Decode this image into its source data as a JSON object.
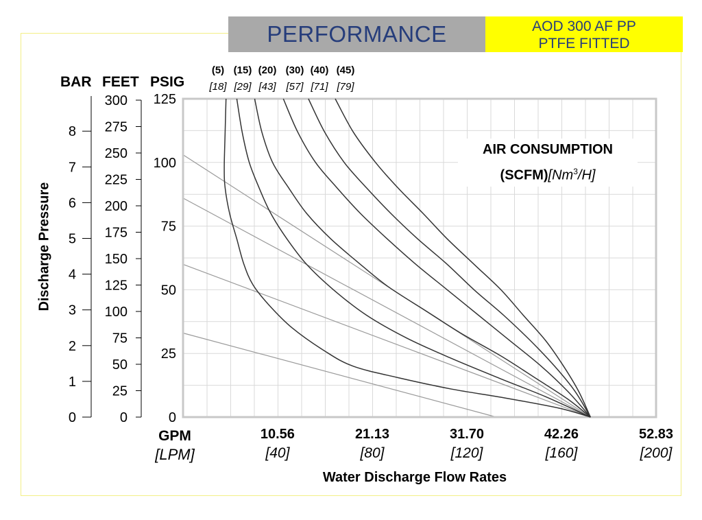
{
  "header": {
    "title": "PERFORMANCE",
    "model_line1": "AOD 300 AF PP",
    "model_line2": "PTFE FITTED"
  },
  "colors": {
    "title_bg": "#a9a9a9",
    "title_text": "#263d7b",
    "model_bg": "#ffff00",
    "frame_border": "#f3ef86",
    "plot_border": "#c8c8c8",
    "grid": "#d9d9d9",
    "curve": "#333333",
    "air_line": "#9a9a9a"
  },
  "axes": {
    "bar_label": "BAR",
    "feet_label": "FEET",
    "psig_label": "PSIG",
    "y_title": "Discharge Pressure",
    "x_title": "Water Discharge Flow Rates",
    "x_unit_primary": "GPM",
    "x_unit_secondary": "[LPM]"
  },
  "air_label": {
    "line1": "AIR CONSUMPTION",
    "line2_bold": "(SCFM)",
    "line2_italic_a": "[Nm",
    "line2_sup": "3",
    "line2_italic_b": "/H]"
  },
  "chart_data": {
    "type": "line",
    "title": "PERFORMANCE",
    "xlabel": "Water Discharge Flow Rates",
    "ylabel": "Discharge Pressure",
    "x_unit": "GPM",
    "y_unit": "PSIG",
    "xlim": [
      0,
      52.83
    ],
    "ylim": [
      0,
      125
    ],
    "grid": true,
    "x_ticks": [
      {
        "value": 10.56,
        "gpm": "10.56",
        "lpm": "[40]"
      },
      {
        "value": 21.13,
        "gpm": "21.13",
        "lpm": "[80]"
      },
      {
        "value": 31.7,
        "gpm": "31.70",
        "lpm": "[120]"
      },
      {
        "value": 42.26,
        "gpm": "42.26",
        "lpm": "[160]"
      },
      {
        "value": 52.83,
        "gpm": "52.83",
        "lpm": "[200]"
      }
    ],
    "psig_ticks": [
      "0",
      "25",
      "50",
      "75",
      "100",
      "125"
    ],
    "feet_ticks": [
      "0",
      "25",
      "50",
      "75",
      "100",
      "125",
      "150",
      "175",
      "200",
      "225",
      "250",
      "275",
      "300"
    ],
    "bar_ticks": [
      "0",
      "1",
      "2",
      "3",
      "4",
      "5",
      "6",
      "7",
      "8"
    ],
    "air_consumption_series": [
      {
        "scfm": "(5)",
        "nm3h": "[18]",
        "points": [
          [
            4.8,
            125
          ],
          [
            4.7,
            112
          ],
          [
            4.6,
            98
          ],
          [
            4.7,
            90
          ],
          [
            5.2,
            80
          ],
          [
            6.0,
            70
          ],
          [
            6.8,
            60
          ],
          [
            7.8,
            52
          ],
          [
            9.6,
            44
          ],
          [
            12.2,
            35
          ],
          [
            15.8,
            26
          ],
          [
            19.0,
            20
          ],
          [
            24.0,
            15.5
          ],
          [
            30.0,
            11
          ],
          [
            36.0,
            7.5
          ],
          [
            42.0,
            3.5
          ],
          [
            45.5,
            0
          ]
        ]
      },
      {
        "scfm": "(15)",
        "nm3h": "[29]",
        "points": [
          [
            6.0,
            125
          ],
          [
            6.6,
            112
          ],
          [
            7.4,
            100
          ],
          [
            8.5,
            90
          ],
          [
            9.8,
            80
          ],
          [
            11.6,
            70
          ],
          [
            13.8,
            60
          ],
          [
            16.8,
            50
          ],
          [
            20.5,
            40
          ],
          [
            25.0,
            31
          ],
          [
            30.0,
            23
          ],
          [
            35.5,
            15
          ],
          [
            40.5,
            8
          ],
          [
            45.5,
            0
          ]
        ]
      },
      {
        "scfm": "(20)",
        "nm3h": "[43]",
        "points": [
          [
            8.0,
            125
          ],
          [
            8.8,
            112
          ],
          [
            10.0,
            100
          ],
          [
            11.8,
            90
          ],
          [
            13.8,
            80
          ],
          [
            16.5,
            70
          ],
          [
            19.8,
            60
          ],
          [
            23.0,
            51
          ],
          [
            27.0,
            42
          ],
          [
            31.0,
            33
          ],
          [
            35.5,
            24
          ],
          [
            39.5,
            15
          ],
          [
            43.0,
            7
          ],
          [
            45.5,
            0
          ]
        ]
      },
      {
        "scfm": "(30)",
        "nm3h": "[57]",
        "points": [
          [
            11.2,
            125
          ],
          [
            12.8,
            112
          ],
          [
            14.8,
            100
          ],
          [
            17.2,
            90
          ],
          [
            19.8,
            80
          ],
          [
            22.8,
            70
          ],
          [
            26.0,
            60
          ],
          [
            29.5,
            50
          ],
          [
            33.0,
            40
          ],
          [
            36.5,
            30
          ],
          [
            40.0,
            20
          ],
          [
            43.0,
            10
          ],
          [
            45.5,
            0
          ]
        ]
      },
      {
        "scfm": "(40)",
        "nm3h": "[71]",
        "points": [
          [
            14.0,
            125
          ],
          [
            15.8,
            112
          ],
          [
            18.0,
            100
          ],
          [
            20.5,
            90
          ],
          [
            23.2,
            80
          ],
          [
            26.2,
            70
          ],
          [
            29.5,
            60
          ],
          [
            32.5,
            50
          ],
          [
            35.8,
            40
          ],
          [
            38.8,
            30
          ],
          [
            41.5,
            20
          ],
          [
            43.8,
            10
          ],
          [
            45.5,
            0
          ]
        ]
      },
      {
        "scfm": "(45)",
        "nm3h": "[79]",
        "points": [
          [
            17.0,
            125
          ],
          [
            19.0,
            112
          ],
          [
            21.5,
            100
          ],
          [
            24.0,
            90
          ],
          [
            26.8,
            80
          ],
          [
            29.5,
            70
          ],
          [
            32.5,
            60
          ],
          [
            35.5,
            50
          ],
          [
            38.0,
            40
          ],
          [
            40.5,
            30
          ],
          [
            42.5,
            20
          ],
          [
            44.2,
            10
          ],
          [
            45.5,
            0
          ]
        ]
      }
    ],
    "air_supply_lines": [
      {
        "start": [
          0,
          103
        ],
        "end": [
          45.5,
          0
        ]
      },
      {
        "start": [
          0,
          86
        ],
        "end": [
          45.5,
          0
        ]
      },
      {
        "start": [
          0,
          60
        ],
        "end": [
          45.5,
          0
        ]
      },
      {
        "start": [
          0,
          33
        ],
        "end": [
          35.0,
          0
        ]
      }
    ]
  }
}
